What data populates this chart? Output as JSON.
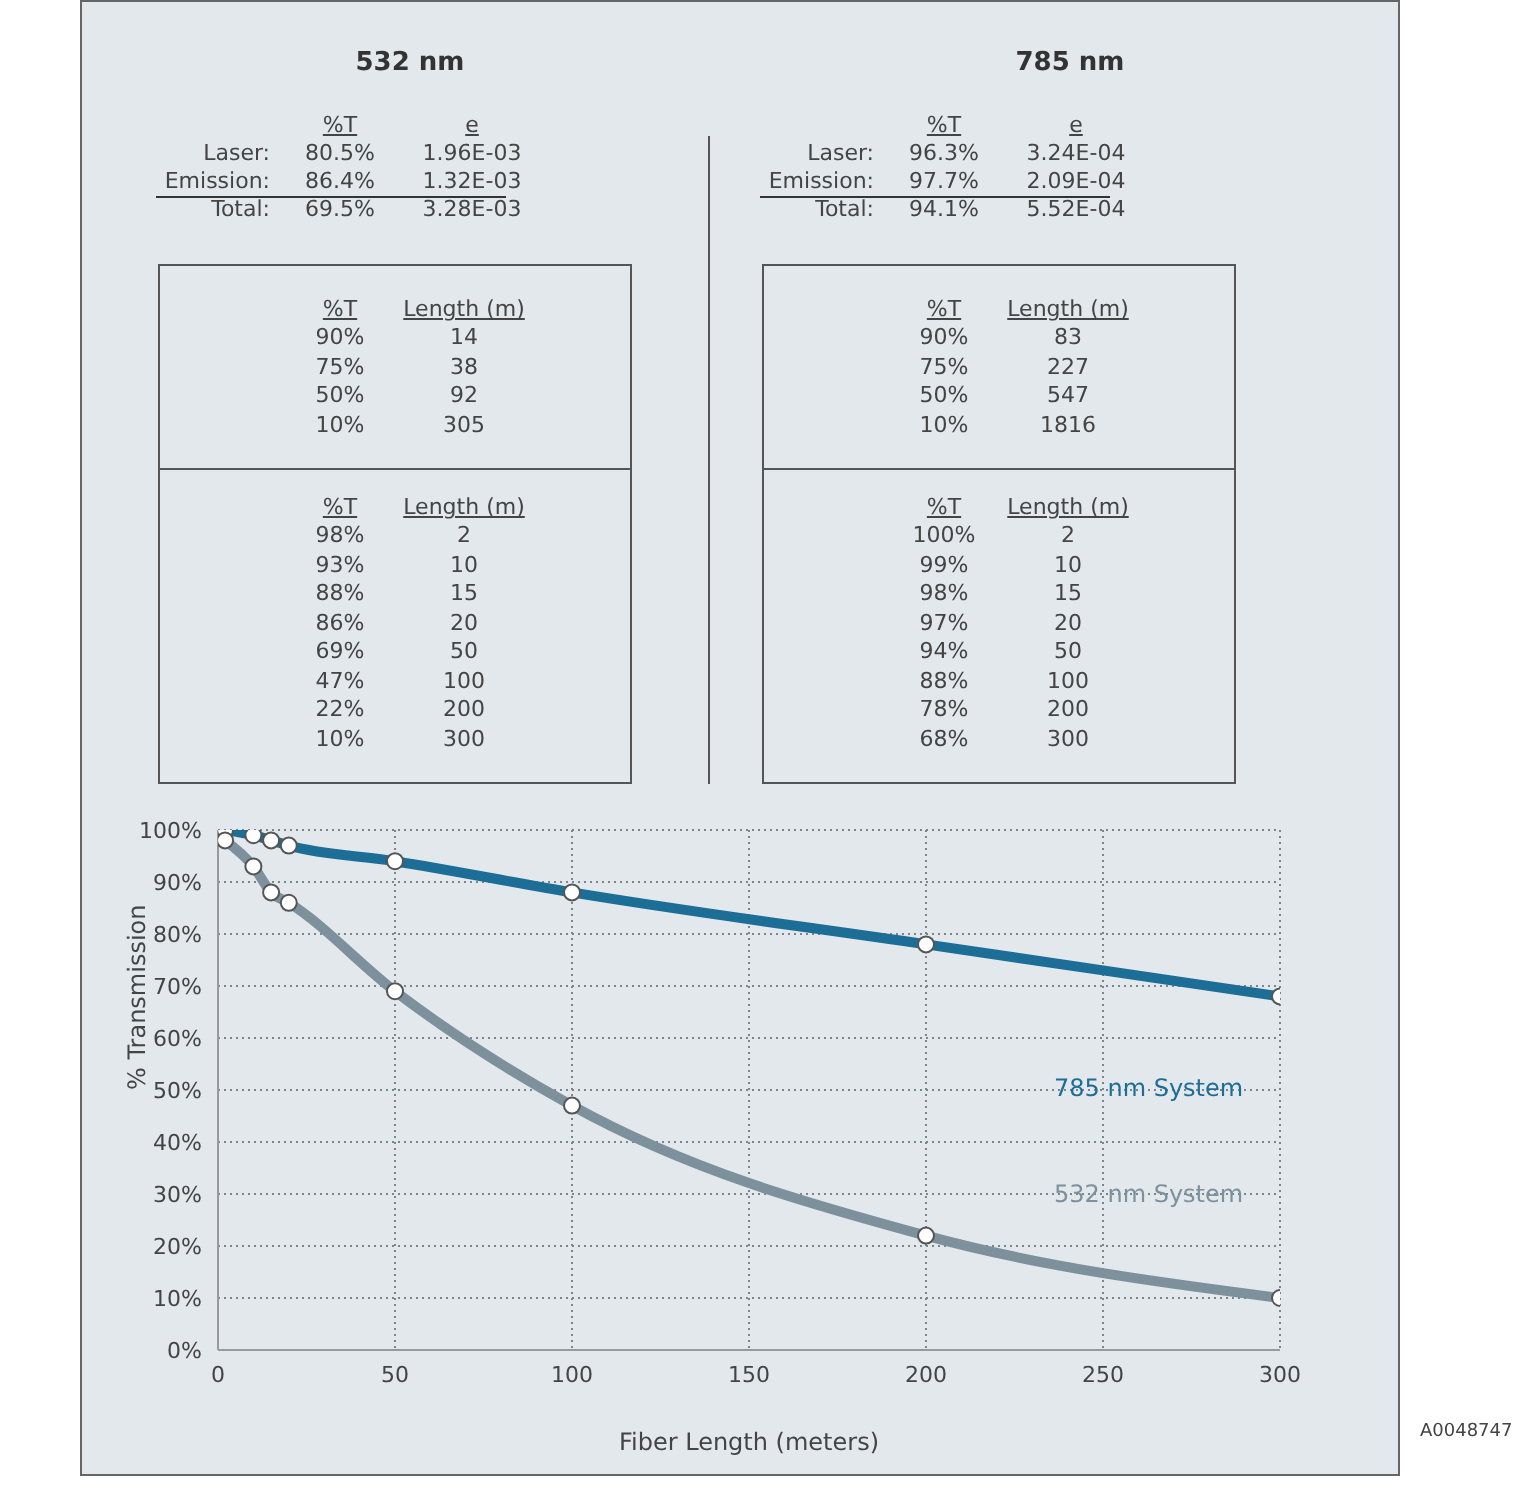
{
  "chart_data": [
    {
      "type": "other",
      "title": "532 nm",
      "annotations": [
        "%T",
        "e",
        "Laser:",
        "80.5%",
        "1.96E-03",
        "Emission:",
        "86.4%",
        "1.32E-03",
        "Total:",
        "69.5%",
        "3.28E-03",
        "%T",
        "Length (m)",
        "90%",
        "14",
        "75%",
        "38",
        "50%",
        "92",
        "10%",
        "305",
        "%T",
        "Length (m)",
        "98%",
        "2",
        "93%",
        "10",
        "88%",
        "15",
        "86%",
        "20",
        "69%",
        "50",
        "47%",
        "100",
        "22%",
        "200",
        "10%",
        "300"
      ]
    },
    {
      "type": "other",
      "title": "785 nm",
      "annotations": [
        "%T",
        "e",
        "Laser:",
        "96.3%",
        "3.24E-04",
        "Emission:",
        "97.7%",
        "2.09E-04",
        "Total:",
        "94.1%",
        "5.52E-04",
        "%T",
        "Length (m)",
        "90%",
        "83",
        "75%",
        "227",
        "50%",
        "547",
        "10%",
        "1816",
        "%T",
        "Length (m)",
        "100%",
        "2",
        "99%",
        "10",
        "98%",
        "15",
        "97%",
        "20",
        "94%",
        "50",
        "88%",
        "100",
        "78%",
        "200",
        "68%",
        "300"
      ]
    },
    {
      "type": "line",
      "xlabel": "Fiber Length (meters)",
      "ylabel": "% Transmission",
      "x": [
        2,
        10,
        15,
        20,
        50,
        100,
        200,
        300
      ],
      "series": [
        {
          "name": "785 nm System",
          "color": "#1d6e96",
          "values": [
            100,
            99,
            98,
            97,
            94,
            88,
            78,
            68
          ]
        },
        {
          "name": "532 nm System",
          "color": "#7d919c",
          "values": [
            98,
            93,
            88,
            86,
            69,
            47,
            22,
            10
          ]
        }
      ],
      "xlim": [
        0,
        300
      ],
      "xticks": [
        0,
        50,
        100,
        150,
        200,
        250,
        300
      ],
      "ylim": [
        0,
        100
      ],
      "yticks": [
        {
          "value": 0,
          "label": "0%"
        },
        {
          "value": 10,
          "label": "10%"
        },
        {
          "value": 20,
          "label": "20%"
        },
        {
          "value": 30,
          "label": "30%"
        },
        {
          "value": 40,
          "label": "40%"
        },
        {
          "value": 50,
          "label": "50%"
        },
        {
          "value": 60,
          "label": "60%"
        },
        {
          "value": 70,
          "label": "70%"
        },
        {
          "value": 80,
          "label": "80%"
        },
        {
          "value": 90,
          "label": "90%"
        },
        {
          "value": 100,
          "label": "100%"
        }
      ],
      "grid": true,
      "marker": "circle",
      "line_style": "solid",
      "annotations": [
        "A0048747"
      ]
    }
  ]
}
